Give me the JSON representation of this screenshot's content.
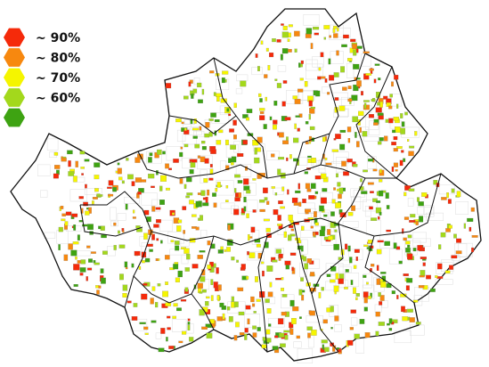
{
  "legend": {
    "items": [
      {
        "label": "~ 90%",
        "color": "#f52a0a"
      },
      {
        "label": "~ 80%",
        "color": "#f7880f"
      },
      {
        "label": "~ 70%",
        "color": "#f5f500"
      },
      {
        "label": "~ 60%",
        "color": "#a3d81c"
      },
      {
        "label": "",
        "color": "#3ea312"
      }
    ]
  }
}
